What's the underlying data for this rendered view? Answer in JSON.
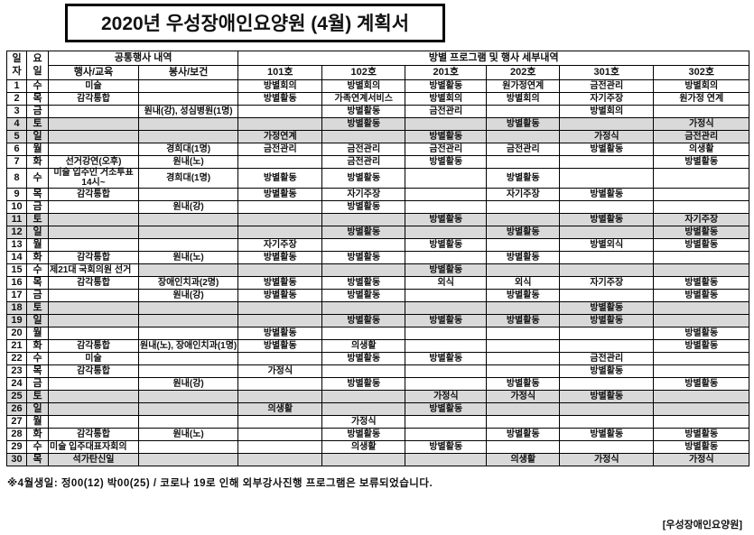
{
  "title": "2020년 우성장애인요양원 (4월) 계획서",
  "table": {
    "headers": {
      "date_col": "일자",
      "weekday_col": "요일",
      "common_group": "공통행사 내역",
      "common_sub": [
        "행사/교육",
        "봉사/보건"
      ],
      "room_group": "방별 프로그램 및 행사 세부내역",
      "rooms": [
        "101호",
        "102호",
        "201호",
        "202호",
        "301호",
        "302호"
      ]
    },
    "rows": [
      {
        "day": 1,
        "weekday": "수",
        "cells": [
          "미술",
          "",
          "방별회의",
          "방별회의",
          "방별활동",
          "원가정연계",
          "금전관리",
          "방별회의"
        ],
        "shade": "none"
      },
      {
        "day": 2,
        "weekday": "목",
        "cells": [
          "감각통합",
          "",
          "방별활동",
          "가족연계서비스",
          "방별회의",
          "방별회의",
          "자기주장",
          "원가정 연계"
        ],
        "shade": "none"
      },
      {
        "day": 3,
        "weekday": "금",
        "cells": [
          "",
          "원내(강), 성심병원(1명)",
          "",
          "방별활동",
          "금전관리",
          "",
          "방별회의",
          ""
        ],
        "shade": "none"
      },
      {
        "day": 4,
        "weekday": "토",
        "cells": [
          "",
          "",
          "",
          "방별활동",
          "",
          "방별활동",
          "",
          "가정식"
        ],
        "shade": "full"
      },
      {
        "day": 5,
        "weekday": "일",
        "cells": [
          "",
          "",
          "가정연계",
          "",
          "방별활동",
          "",
          "가정식",
          "금전관리"
        ],
        "shade": "full"
      },
      {
        "day": 6,
        "weekday": "월",
        "cells": [
          "",
          "경희대(1명)",
          "금전관리",
          "금전관리",
          "금전관리",
          "금전관리",
          "방별활동",
          "의생활"
        ],
        "shade": "none"
      },
      {
        "day": 7,
        "weekday": "화",
        "cells": [
          "선거강연(오후)",
          "원내(노)",
          "",
          "금전관리",
          "방별활동",
          "",
          "",
          "방별활동"
        ],
        "shade": "none"
      },
      {
        "day": 8,
        "weekday": "수",
        "cells": [
          "미술 입주인 거소투표 14시~",
          "경희대(1명)",
          "방별활동",
          "방별활동",
          "",
          "방별활동",
          "",
          ""
        ],
        "shade": "none",
        "tall": true
      },
      {
        "day": 9,
        "weekday": "목",
        "cells": [
          "감각통합",
          "",
          "방별활동",
          "자기주장",
          "",
          "자기주장",
          "방별활동",
          ""
        ],
        "shade": "none"
      },
      {
        "day": 10,
        "weekday": "금",
        "cells": [
          "",
          "원내(강)",
          "",
          "방별활동",
          "",
          "",
          "",
          ""
        ],
        "shade": "none"
      },
      {
        "day": 11,
        "weekday": "토",
        "cells": [
          "",
          "",
          "",
          "",
          "방별활동",
          "",
          "방별활동",
          "자기주장"
        ],
        "shade": "full"
      },
      {
        "day": 12,
        "weekday": "일",
        "cells": [
          "",
          "",
          "",
          "방별활동",
          "",
          "방별활동",
          "",
          "방별활동"
        ],
        "shade": "full"
      },
      {
        "day": 13,
        "weekday": "월",
        "cells": [
          "",
          "",
          "자기주장",
          "",
          "방별활동",
          "",
          "방별외식",
          "방별활동"
        ],
        "shade": "none"
      },
      {
        "day": 14,
        "weekday": "화",
        "cells": [
          "감각통합",
          "원내(노)",
          "방별활동",
          "방별활동",
          "",
          "방별활동",
          "",
          ""
        ],
        "shade": "none"
      },
      {
        "day": 15,
        "weekday": "수",
        "cells": [
          "제21대 국회의원 선거",
          "",
          "",
          "",
          "방별활동",
          "",
          "",
          ""
        ],
        "shade": "partial",
        "event_align": "left"
      },
      {
        "day": 16,
        "weekday": "목",
        "cells": [
          "감각통합",
          "장애인치과(2명)",
          "방별활동",
          "방별활동",
          "외식",
          "외식",
          "자기주장",
          "방별활동"
        ],
        "shade": "none"
      },
      {
        "day": 17,
        "weekday": "금",
        "cells": [
          "",
          "원내(강)",
          "방별활동",
          "방별활동",
          "",
          "방별활동",
          "",
          "방별활동"
        ],
        "shade": "none"
      },
      {
        "day": 18,
        "weekday": "토",
        "cells": [
          "",
          "",
          "",
          "",
          "",
          "",
          "방별활동",
          ""
        ],
        "shade": "full"
      },
      {
        "day": 19,
        "weekday": "일",
        "cells": [
          "",
          "",
          "",
          "방별활동",
          "방별활동",
          "방별활동",
          "방별활동",
          ""
        ],
        "shade": "full"
      },
      {
        "day": 20,
        "weekday": "월",
        "cells": [
          "",
          "",
          "방별활동",
          "",
          "",
          "",
          "",
          "방별활동"
        ],
        "shade": "none"
      },
      {
        "day": 21,
        "weekday": "화",
        "cells": [
          "감각통합",
          "원내(노), 장애인치과(1명)",
          "방별활동",
          "의생활",
          "",
          "",
          "",
          "방별활동"
        ],
        "shade": "none"
      },
      {
        "day": 22,
        "weekday": "수",
        "cells": [
          "미술",
          "",
          "",
          "방별활동",
          "방별활동",
          "",
          "금전관리",
          ""
        ],
        "shade": "none"
      },
      {
        "day": 23,
        "weekday": "목",
        "cells": [
          "감각통합",
          "",
          "가정식",
          "",
          "",
          "",
          "방별활동",
          ""
        ],
        "shade": "none"
      },
      {
        "day": 24,
        "weekday": "금",
        "cells": [
          "",
          "원내(강)",
          "",
          "방별활동",
          "",
          "방별활동",
          "",
          "방별활동"
        ],
        "shade": "none"
      },
      {
        "day": 25,
        "weekday": "토",
        "cells": [
          "",
          "",
          "",
          "",
          "가정식",
          "가정식",
          "방별활동",
          ""
        ],
        "shade": "full"
      },
      {
        "day": 26,
        "weekday": "일",
        "cells": [
          "",
          "",
          "의생활",
          "",
          "방별활동",
          "",
          "",
          ""
        ],
        "shade": "full"
      },
      {
        "day": 27,
        "weekday": "월",
        "cells": [
          "",
          "",
          "",
          "가정식",
          "",
          "",
          "",
          ""
        ],
        "shade": "none"
      },
      {
        "day": 28,
        "weekday": "화",
        "cells": [
          "감각통합",
          "원내(노)",
          "",
          "방별활동",
          "",
          "방별활동",
          "방별활동",
          "방별활동"
        ],
        "shade": "none"
      },
      {
        "day": 29,
        "weekday": "수",
        "cells": [
          "미술 입주대표자회의",
          "",
          "",
          "의생활",
          "방별활동",
          "",
          "",
          "방별활동"
        ],
        "shade": "none",
        "event_align": "left"
      },
      {
        "day": 30,
        "weekday": "목",
        "cells": [
          "석가탄신일",
          "",
          "",
          "",
          "",
          "의생활",
          "가정식",
          "가정식"
        ],
        "shade": "full"
      }
    ]
  },
  "footer": {
    "note": "※4월생일: 정00(12) 박00(25) / 코로나 19로 인해 외부강사진행 프로그램은 보류되었습니다.",
    "signature": "[우성장애인요양원]"
  },
  "colors": {
    "shaded_row": "#d9d9d9",
    "border": "#000000",
    "text": "#111111"
  }
}
